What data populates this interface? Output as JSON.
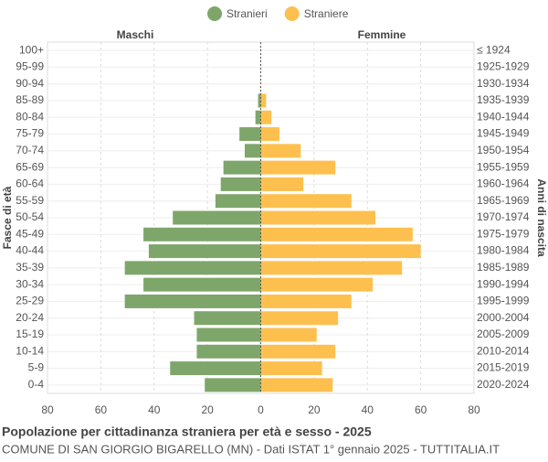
{
  "chart_data": {
    "type": "pyramid",
    "title": "Popolazione per cittadinanza straniera per età e sesso - 2025",
    "subtitle": "COMUNE DI SAN GIORGIO BIGARELLO (MN) - Dati ISTAT 1° gennaio 2025 - TUTTITALIA.IT",
    "left_label": "Maschi",
    "right_label": "Femmine",
    "y_label": "Fasce di età",
    "y2_label": "Anni di nascita",
    "categories": [
      "100+",
      "95-99",
      "90-94",
      "85-89",
      "80-84",
      "75-79",
      "70-74",
      "65-69",
      "60-64",
      "55-59",
      "50-54",
      "45-49",
      "40-44",
      "35-39",
      "30-34",
      "25-29",
      "20-24",
      "15-19",
      "10-14",
      "5-9",
      "0-4"
    ],
    "birth_years": [
      "≤ 1924",
      "1925-1929",
      "1930-1934",
      "1935-1939",
      "1940-1944",
      "1945-1949",
      "1950-1954",
      "1955-1959",
      "1960-1964",
      "1965-1969",
      "1970-1974",
      "1975-1979",
      "1980-1984",
      "1985-1989",
      "1990-1994",
      "1995-1999",
      "2000-2004",
      "2005-2009",
      "2010-2014",
      "2015-2019",
      "2020-2024"
    ],
    "series": [
      {
        "name": "Stranieri",
        "color": "#7ea66b",
        "side": "left",
        "values": [
          0,
          0,
          0,
          1,
          2,
          8,
          6,
          14,
          15,
          17,
          33,
          44,
          42,
          51,
          44,
          51,
          25,
          24,
          24,
          34,
          21
        ]
      },
      {
        "name": "Straniere",
        "color": "#fdc04f",
        "side": "right",
        "values": [
          0,
          0,
          0,
          2,
          4,
          7,
          15,
          28,
          16,
          34,
          43,
          57,
          60,
          53,
          42,
          34,
          29,
          21,
          28,
          23,
          27
        ]
      }
    ],
    "xlim": [
      -80,
      80
    ],
    "xticks": [
      {
        "value": -80,
        "label": "80"
      },
      {
        "value": -60,
        "label": "60"
      },
      {
        "value": -40,
        "label": "40"
      },
      {
        "value": -20,
        "label": "20"
      },
      0,
      20,
      40,
      60,
      80
    ],
    "grid": true
  }
}
